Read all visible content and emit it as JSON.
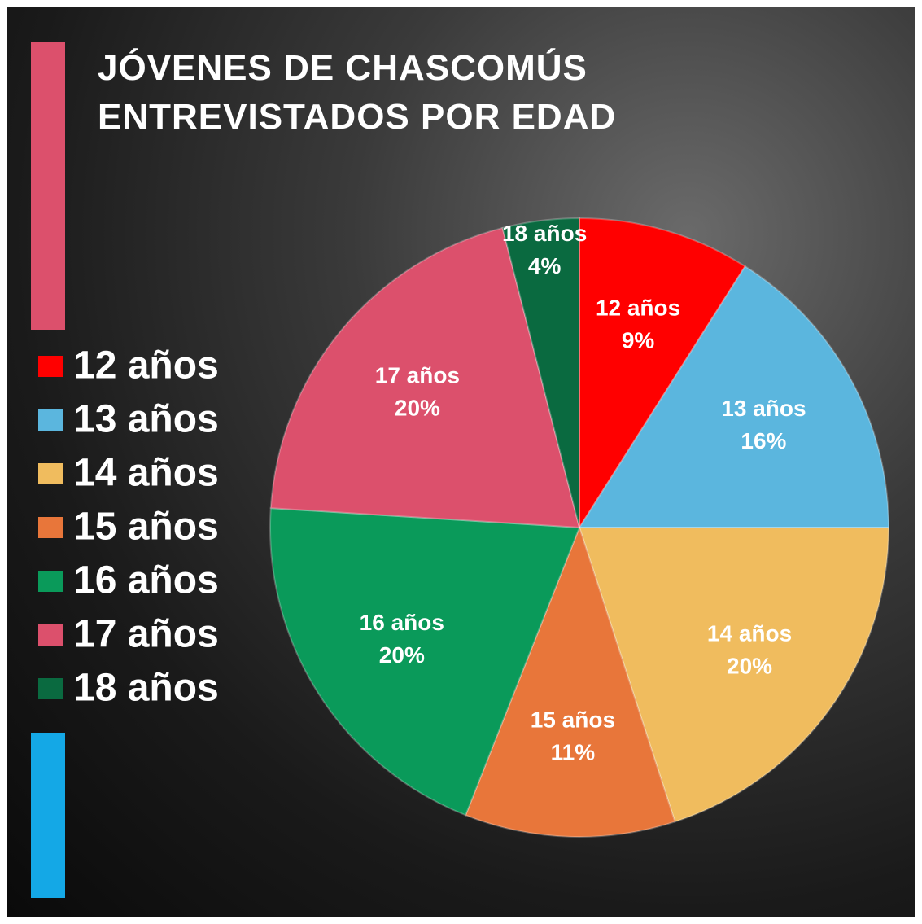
{
  "chart_data": {
    "type": "pie",
    "title": "JÓVENES DE CHASCOMÚS ENTREVISTADOS POR EDAD",
    "categories": [
      "12 años",
      "13 años",
      "14 años",
      "15 años",
      "16 años",
      "17 años",
      "18 años"
    ],
    "values": [
      9,
      16,
      20,
      11,
      20,
      20,
      4
    ],
    "value_labels": [
      "9%",
      "16%",
      "20%",
      "11%",
      "20%",
      "20%",
      "4%"
    ],
    "colors": [
      "#ff0000",
      "#5bb6de",
      "#f0bc5e",
      "#e8763a",
      "#0a9a5a",
      "#dc506c",
      "#0a6a40"
    ],
    "legend": "left"
  }
}
